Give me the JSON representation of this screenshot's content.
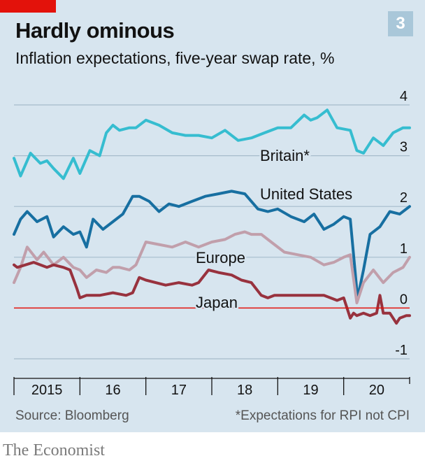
{
  "header": {
    "title": "Hardly ominous",
    "subtitle": "Inflation expectations, five-year swap rate, %",
    "badge": "3"
  },
  "footer": {
    "source": "Source: Bloomberg",
    "footnote": "*Expectations for RPI not CPI",
    "brand": "The Economist"
  },
  "colors": {
    "background": "#d7e5ef",
    "brand_red": "#e3120b",
    "Britain": "#36bdd0",
    "United States": "#176fa1",
    "Europe": "#c19fab",
    "Japan": "#98323e",
    "zero_line": "#e3120b",
    "grid": "#a6bccb"
  },
  "chart_data": {
    "type": "line",
    "title": "Hardly ominous",
    "subtitle": "Inflation expectations, five-year swap rate, %",
    "ylim": [
      -1,
      4
    ],
    "yticks": [
      "4",
      "3",
      "2",
      "1",
      "0",
      "-1"
    ],
    "ytick_values": [
      4,
      3,
      2,
      1,
      0,
      -1
    ],
    "xlim": [
      2015.0,
      2021.0
    ],
    "xticks": [
      "2015",
      "16",
      "17",
      "18",
      "19",
      "20"
    ],
    "xtick_values": [
      2015.0,
      2016.0,
      2017.0,
      2018.0,
      2019.0,
      2020.0
    ],
    "grid": true,
    "legend": "inline labels",
    "series": [
      {
        "name": "Britain*",
        "x": [
          2015.0,
          2015.1,
          2015.25,
          2015.4,
          2015.5,
          2015.6,
          2015.75,
          2015.9,
          2016.0,
          2016.15,
          2016.3,
          2016.4,
          2016.5,
          2016.6,
          2016.75,
          2016.85,
          2017.0,
          2017.2,
          2017.4,
          2017.6,
          2017.8,
          2018.0,
          2018.2,
          2018.4,
          2018.6,
          2018.8,
          2019.0,
          2019.2,
          2019.4,
          2019.5,
          2019.6,
          2019.75,
          2019.9,
          2020.1,
          2020.2,
          2020.3,
          2020.45,
          2020.6,
          2020.75,
          2020.9,
          2021.0
        ],
        "y": [
          2.95,
          2.6,
          3.05,
          2.85,
          2.9,
          2.75,
          2.55,
          2.95,
          2.65,
          3.1,
          3.0,
          3.45,
          3.6,
          3.5,
          3.55,
          3.55,
          3.7,
          3.6,
          3.45,
          3.4,
          3.4,
          3.35,
          3.5,
          3.3,
          3.35,
          3.45,
          3.55,
          3.55,
          3.8,
          3.7,
          3.75,
          3.9,
          3.55,
          3.5,
          3.1,
          3.05,
          3.35,
          3.2,
          3.45,
          3.55,
          3.55
        ]
      },
      {
        "name": "United States",
        "x": [
          2015.0,
          2015.1,
          2015.2,
          2015.35,
          2015.5,
          2015.6,
          2015.75,
          2015.9,
          2016.0,
          2016.1,
          2016.2,
          2016.35,
          2016.5,
          2016.65,
          2016.8,
          2016.9,
          2017.05,
          2017.2,
          2017.35,
          2017.5,
          2017.7,
          2017.9,
          2018.1,
          2018.3,
          2018.5,
          2018.7,
          2018.85,
          2019.0,
          2019.2,
          2019.4,
          2019.55,
          2019.7,
          2019.85,
          2020.0,
          2020.1,
          2020.2,
          2020.22,
          2020.3,
          2020.4,
          2020.55,
          2020.7,
          2020.85,
          2021.0
        ],
        "y": [
          1.45,
          1.75,
          1.9,
          1.7,
          1.8,
          1.4,
          1.6,
          1.45,
          1.5,
          1.2,
          1.75,
          1.55,
          1.7,
          1.85,
          2.2,
          2.2,
          2.1,
          1.9,
          2.05,
          2.0,
          2.1,
          2.2,
          2.25,
          2.3,
          2.25,
          1.95,
          1.9,
          1.95,
          1.8,
          1.7,
          1.85,
          1.55,
          1.65,
          1.8,
          1.75,
          0.35,
          0.25,
          0.75,
          1.45,
          1.6,
          1.9,
          1.85,
          2.0
        ]
      },
      {
        "name": "Europe",
        "x": [
          2015.0,
          2015.1,
          2015.2,
          2015.35,
          2015.45,
          2015.6,
          2015.75,
          2015.9,
          2016.0,
          2016.1,
          2016.25,
          2016.4,
          2016.5,
          2016.6,
          2016.75,
          2016.85,
          2017.0,
          2017.2,
          2017.4,
          2017.6,
          2017.8,
          2018.0,
          2018.2,
          2018.35,
          2018.5,
          2018.6,
          2018.75,
          2018.9,
          2019.1,
          2019.3,
          2019.5,
          2019.7,
          2019.85,
          2020.0,
          2020.1,
          2020.2,
          2020.3,
          2020.45,
          2020.6,
          2020.75,
          2020.9,
          2021.0
        ],
        "y": [
          0.5,
          0.8,
          1.2,
          0.95,
          1.1,
          0.85,
          1.0,
          0.8,
          0.75,
          0.6,
          0.75,
          0.7,
          0.8,
          0.8,
          0.75,
          0.85,
          1.3,
          1.25,
          1.2,
          1.3,
          1.2,
          1.3,
          1.35,
          1.45,
          1.5,
          1.45,
          1.45,
          1.3,
          1.1,
          1.05,
          1.0,
          0.85,
          0.9,
          1.0,
          1.05,
          0.1,
          0.5,
          0.75,
          0.5,
          0.7,
          0.8,
          1.0
        ]
      },
      {
        "name": "Japan",
        "x": [
          2015.0,
          2015.05,
          2015.3,
          2015.5,
          2015.6,
          2015.75,
          2015.85,
          2015.95,
          2016.0,
          2016.1,
          2016.3,
          2016.5,
          2016.7,
          2016.8,
          2016.9,
          2017.0,
          2017.3,
          2017.5,
          2017.7,
          2017.8,
          2017.95,
          2018.1,
          2018.3,
          2018.45,
          2018.6,
          2018.75,
          2018.85,
          2018.95,
          2019.1,
          2019.3,
          2019.5,
          2019.7,
          2019.9,
          2020.0,
          2020.1,
          2020.15,
          2020.2,
          2020.3,
          2020.4,
          2020.5,
          2020.55,
          2020.6,
          2020.7,
          2020.8,
          2020.85,
          2020.95,
          2021.0
        ],
        "y": [
          0.85,
          0.8,
          0.9,
          0.8,
          0.85,
          0.8,
          0.75,
          0.4,
          0.2,
          0.25,
          0.25,
          0.3,
          0.25,
          0.3,
          0.6,
          0.55,
          0.45,
          0.5,
          0.45,
          0.5,
          0.75,
          0.7,
          0.65,
          0.55,
          0.5,
          0.25,
          0.2,
          0.25,
          0.25,
          0.25,
          0.25,
          0.25,
          0.15,
          0.2,
          -0.2,
          -0.1,
          -0.15,
          -0.1,
          -0.15,
          -0.1,
          0.25,
          -0.1,
          -0.1,
          -0.3,
          -0.2,
          -0.15,
          -0.15
        ]
      }
    ]
  }
}
